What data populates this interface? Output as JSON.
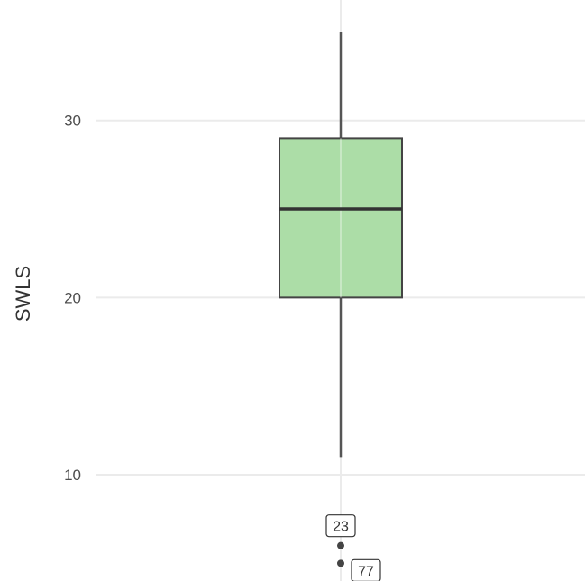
{
  "chart_data": {
    "type": "boxplot",
    "ylabel": "SWLS",
    "xlabel": "",
    "ylim": [
      4.0,
      36.8
    ],
    "y_ticks": [
      10,
      20,
      30
    ],
    "grid": true,
    "box": {
      "q1": 20,
      "median": 25,
      "q3": 29,
      "whisker_low": 11,
      "whisker_high": 35
    },
    "outliers": [
      {
        "value": 6,
        "label": "23"
      },
      {
        "value": 5,
        "label": "77"
      }
    ],
    "colors": {
      "box_fill": "#a8dba2",
      "box_stroke": "#444444",
      "grid": "#ebebeb",
      "whisker": "#555555",
      "outlier": "#444444"
    }
  }
}
